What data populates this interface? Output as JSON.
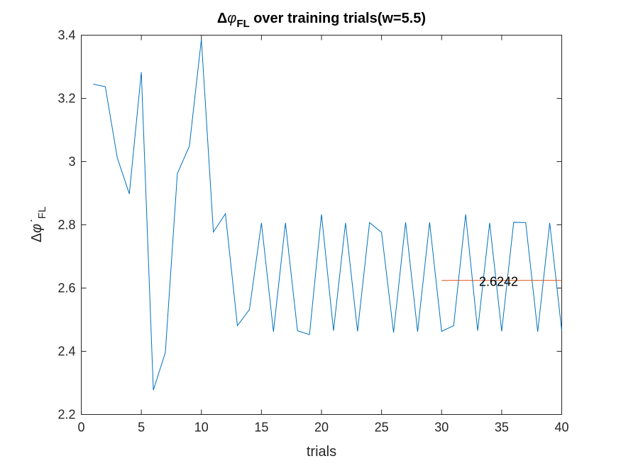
{
  "chart_data": {
    "type": "line",
    "title": {
      "prefix": "Δ",
      "symbol": "φ",
      "subscript": "FL",
      "suffix": " over training trials(w=5.5)"
    },
    "xlabel": "trials",
    "ylabel": {
      "prefix": "Δ",
      "symbol": "φ",
      "dot": "˙",
      "subscript": "FL"
    },
    "xlim": [
      0,
      40
    ],
    "ylim": [
      2.2,
      3.4
    ],
    "xticks": [
      0,
      5,
      10,
      15,
      20,
      25,
      30,
      35,
      40
    ],
    "yticks": [
      2.2,
      2.4,
      2.6,
      2.8,
      3.0,
      3.2,
      3.4
    ],
    "xtick_labels": [
      "0",
      "5",
      "10",
      "15",
      "20",
      "25",
      "30",
      "35",
      "40"
    ],
    "ytick_labels": [
      "2.2",
      "2.4",
      "2.6",
      "2.8",
      "3",
      "3.2",
      "3.4"
    ],
    "grid": false,
    "series": [
      {
        "color": "#0072BD",
        "x": [
          1,
          2,
          3,
          4,
          5,
          6,
          7,
          8,
          9,
          10,
          11,
          12,
          13,
          14,
          15,
          16,
          17,
          18,
          19,
          20,
          21,
          22,
          23,
          24,
          25,
          26,
          27,
          28,
          29,
          30,
          31,
          32,
          33,
          34,
          35,
          36,
          37,
          38,
          39,
          40
        ],
        "values": [
          3.245,
          3.237,
          3.012,
          2.898,
          3.283,
          2.277,
          2.396,
          2.962,
          3.049,
          3.387,
          2.777,
          2.835,
          2.481,
          2.532,
          2.806,
          2.462,
          2.806,
          2.465,
          2.453,
          2.833,
          2.465,
          2.806,
          2.463,
          2.807,
          2.776,
          2.459,
          2.808,
          2.462,
          2.808,
          2.463,
          2.481,
          2.833,
          2.465,
          2.806,
          2.463,
          2.808,
          2.807,
          2.462,
          2.806,
          2.465
        ]
      },
      {
        "color": "#D95319",
        "x": [
          30,
          40
        ],
        "values": [
          2.6242,
          2.6242
        ]
      }
    ],
    "annotations": [
      {
        "text": "2.6242",
        "x": 33,
        "y": 2.6242
      }
    ]
  }
}
